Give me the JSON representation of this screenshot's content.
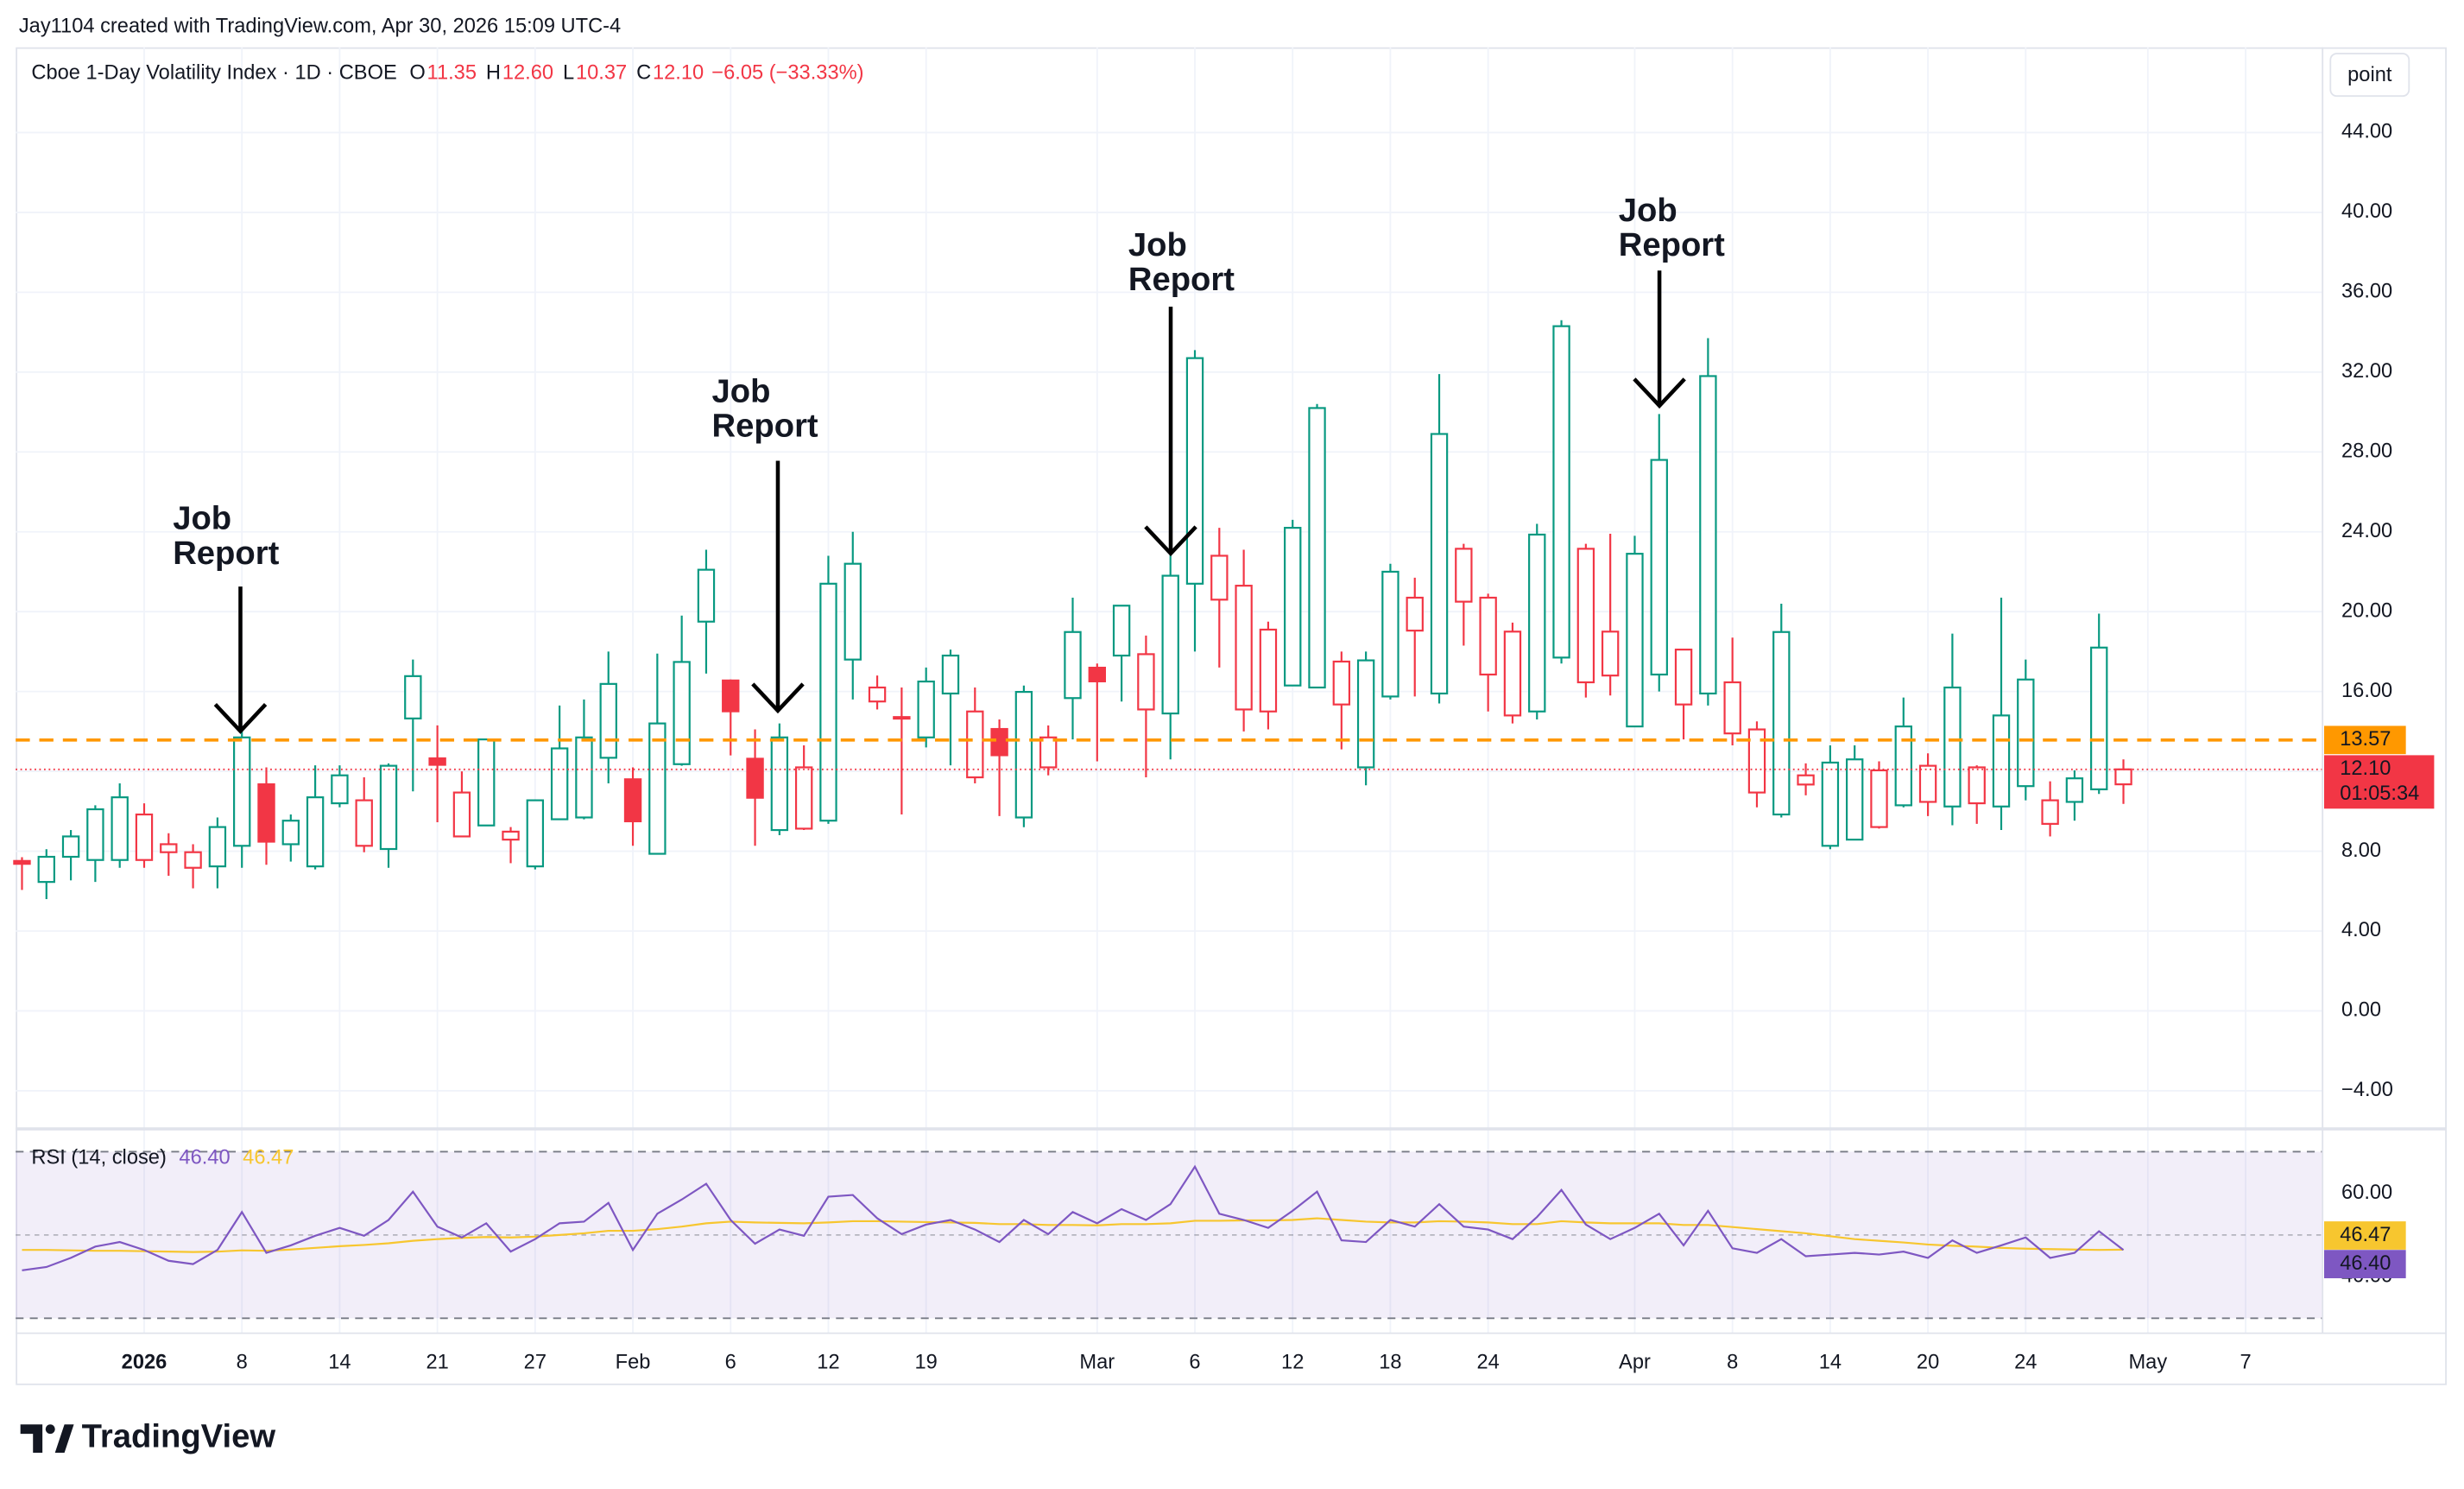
{
  "credit": "Jay1104 created with TradingView.com, Apr 30, 2026 15:09 UTC-4",
  "scale_button": "point",
  "brand": "TradingView",
  "chart_data": [
    {
      "type": "candlestick",
      "legend": {
        "name": "Cboe 1-Day Volatility Index · 1D · CBOE",
        "o": "O",
        "open": "11.35",
        "h": "H",
        "high": "12.60",
        "l": "L",
        "low": "10.37",
        "c": "C",
        "close": "12.10",
        "change": "−6.05 (−33.33%)"
      },
      "open": [
        7.56,
        6.46,
        7.72,
        7.56,
        7.56,
        7.56,
        7.95,
        7.17,
        7.24,
        8.27,
        11.4,
        8.35,
        7.24,
        10.4,
        8.27,
        8.11,
        14.65,
        12.7,
        8.74,
        9.29,
        8.58,
        7.24,
        9.6,
        9.69,
        12.68,
        11.65,
        7.87,
        12.36,
        19.5,
        16.6,
        12.68,
        9.06,
        9.13,
        9.53,
        17.6,
        15.5,
        14.65,
        13.7,
        15.9,
        11.7,
        14.17,
        9.69,
        12.2,
        15.67,
        17.24,
        17.8,
        15.1,
        14.9,
        21.4,
        20.6,
        15.1,
        15.0,
        16.3,
        16.2,
        15.35,
        12.2,
        15.75,
        19.05,
        15.9,
        20.5,
        16.85,
        14.8,
        15.0,
        17.7,
        16.46,
        16.8,
        14.25,
        16.85,
        15.35,
        15.9,
        13.9,
        10.94,
        9.84,
        11.34,
        8.27,
        8.58,
        9.21,
        10.3,
        10.47,
        10.24,
        10.4,
        10.24,
        11.26,
        9.37,
        10.47,
        11.1,
        11.35
      ],
      "high": [
        7.7,
        8.1,
        9.06,
        10.3,
        11.4,
        10.4,
        8.9,
        8.35,
        9.69,
        14.0,
        12.2,
        9.84,
        12.3,
        12.3,
        11.7,
        12.4,
        17.6,
        14.3,
        12.0,
        13.6,
        9.21,
        10.6,
        15.3,
        15.6,
        18.0,
        12.2,
        17.9,
        19.8,
        23.1,
        16.6,
        14.1,
        14.4,
        13.3,
        22.8,
        24.0,
        16.8,
        16.2,
        17.2,
        18.1,
        16.2,
        14.6,
        16.3,
        14.3,
        20.7,
        17.4,
        20.3,
        18.8,
        23.1,
        33.1,
        24.2,
        23.1,
        19.5,
        24.6,
        30.4,
        18.0,
        18.0,
        22.4,
        21.7,
        31.9,
        23.4,
        20.9,
        19.45,
        24.4,
        34.6,
        23.4,
        23.9,
        23.8,
        29.9,
        18.1,
        33.7,
        18.7,
        14.5,
        20.4,
        12.4,
        13.3,
        13.3,
        12.5,
        15.7,
        12.9,
        18.9,
        12.3,
        20.7,
        17.6,
        11.5,
        12.05,
        19.9,
        12.6
      ],
      "low": [
        6.06,
        5.6,
        6.54,
        6.46,
        7.17,
        7.17,
        6.77,
        6.14,
        6.14,
        7.17,
        7.32,
        7.48,
        7.09,
        10.2,
        7.95,
        7.17,
        11.0,
        9.45,
        8.74,
        9.29,
        7.4,
        7.09,
        9.6,
        9.6,
        11.4,
        8.27,
        7.87,
        12.28,
        16.9,
        12.8,
        8.27,
        8.8,
        9.06,
        9.37,
        15.6,
        15.1,
        9.84,
        13.2,
        12.3,
        11.4,
        9.76,
        9.2,
        11.8,
        13.6,
        12.5,
        15.5,
        11.7,
        12.6,
        18.0,
        17.2,
        14.0,
        14.1,
        16.3,
        16.2,
        13.1,
        11.3,
        15.6,
        15.75,
        15.4,
        18.3,
        15.0,
        14.4,
        14.6,
        17.4,
        15.7,
        15.8,
        14.25,
        16.0,
        13.6,
        15.3,
        13.3,
        10.2,
        9.69,
        10.8,
        8.1,
        8.58,
        9.13,
        10.2,
        9.76,
        9.3,
        9.37,
        9.06,
        10.55,
        8.74,
        9.53,
        10.87,
        10.37
      ],
      "close": [
        7.32,
        7.72,
        8.74,
        10.1,
        10.7,
        9.84,
        8.35,
        7.95,
        9.21,
        13.7,
        8.43,
        9.53,
        10.7,
        11.8,
        10.55,
        12.28,
        16.77,
        12.28,
        10.94,
        13.6,
        8.98,
        10.55,
        13.15,
        13.7,
        16.38,
        9.45,
        14.4,
        17.48,
        22.1,
        14.96,
        10.63,
        13.7,
        12.2,
        21.4,
        22.4,
        16.2,
        14.72,
        16.5,
        17.8,
        15.0,
        12.76,
        15.98,
        13.7,
        18.98,
        16.46,
        20.3,
        17.87,
        21.8,
        32.7,
        22.8,
        21.3,
        19.1,
        24.2,
        30.2,
        17.5,
        17.56,
        22.0,
        20.7,
        28.9,
        23.15,
        20.7,
        19.0,
        23.86,
        34.3,
        23.15,
        19.0,
        22.9,
        27.6,
        18.1,
        31.8,
        16.46,
        14.1,
        18.98,
        11.8,
        12.44,
        12.6,
        12.05,
        14.25,
        12.28,
        16.2,
        12.2,
        14.8,
        16.6,
        10.55,
        11.65,
        18.2,
        12.1
      ],
      "up_color": "#089981",
      "down_color": "#f23645",
      "xlim": [
        -0.257,
        94.15
      ],
      "xticks": [
        {
          "value": 5,
          "label": "2026"
        },
        {
          "value": 9,
          "label": "8"
        },
        {
          "value": 13,
          "label": "14"
        },
        {
          "value": 17,
          "label": "21"
        },
        {
          "value": 21,
          "label": "27"
        },
        {
          "value": 25,
          "label": "Feb"
        },
        {
          "value": 29,
          "label": "6"
        },
        {
          "value": 33,
          "label": "12"
        },
        {
          "value": 37,
          "label": "19"
        },
        {
          "value": 44,
          "label": "Mar"
        },
        {
          "value": 48,
          "label": "6"
        },
        {
          "value": 52,
          "label": "12"
        },
        {
          "value": 56,
          "label": "18"
        },
        {
          "value": 60,
          "label": "24"
        },
        {
          "value": 66,
          "label": "Apr"
        },
        {
          "value": 70,
          "label": "8"
        },
        {
          "value": 74,
          "label": "14"
        },
        {
          "value": 78,
          "label": "20"
        },
        {
          "value": 82,
          "label": "24"
        },
        {
          "value": 87,
          "label": "May"
        },
        {
          "value": 91,
          "label": "7"
        }
      ],
      "ylim": [
        -5.83,
        48.27
      ],
      "yticks": [
        {
          "value": 44,
          "label": "44.00"
        },
        {
          "value": 40,
          "label": "40.00"
        },
        {
          "value": 36,
          "label": "36.00"
        },
        {
          "value": 32,
          "label": "32.00"
        },
        {
          "value": 28,
          "label": "28.00"
        },
        {
          "value": 24,
          "label": "24.00"
        },
        {
          "value": 20,
          "label": "20.00"
        },
        {
          "value": 16,
          "label": "16.00"
        },
        {
          "value": 12,
          "label": "12.00"
        },
        {
          "value": 8,
          "label": "8.00"
        },
        {
          "value": 4,
          "label": "4.00"
        },
        {
          "value": 0,
          "label": "0.00"
        },
        {
          "value": -4,
          "label": "−4.00"
        }
      ],
      "grid": true,
      "hline": {
        "value": 13.57,
        "color": "#ff9800"
      },
      "last_price": {
        "value": 12.1,
        "label": "12.10",
        "countdown": "01:05:34",
        "color": "#f23645"
      },
      "annotations": [
        [
          "Job",
          "Report"
        ],
        [
          "Job",
          "Report"
        ],
        [
          "Job",
          "Report"
        ],
        [
          "Job",
          "Report"
        ]
      ]
    },
    {
      "type": "line",
      "title": "RSI (14, close)",
      "ylim": [
        26.4,
        75.1
      ],
      "yticks": [
        {
          "value": 60,
          "label": "60.00"
        },
        {
          "value": 40,
          "label": "40.00"
        }
      ],
      "bands": [
        70,
        50,
        30
      ],
      "band_color": "#7e57c2",
      "series": [
        {
          "color": "#7e57c2",
          "last_label": "46.40",
          "values": [
            41.5,
            42.3,
            44.5,
            47.2,
            48.3,
            46.4,
            43.8,
            43.0,
            46.4,
            55.5,
            45.7,
            47.5,
            49.8,
            51.7,
            49.8,
            53.6,
            60.4,
            52.0,
            49.4,
            52.8,
            46.0,
            49.0,
            52.8,
            53.2,
            57.7,
            46.4,
            55.1,
            58.5,
            62.3,
            53.6,
            47.9,
            51.3,
            49.8,
            59.2,
            59.6,
            54.0,
            50.2,
            52.5,
            53.6,
            51.3,
            48.3,
            53.6,
            50.2,
            55.5,
            52.8,
            56.2,
            53.6,
            57.4,
            66.4,
            55.1,
            53.6,
            51.7,
            55.8,
            60.4,
            48.7,
            48.3,
            53.6,
            52.0,
            57.4,
            52.0,
            51.3,
            49.0,
            54.3,
            60.8,
            52.5,
            49.0,
            51.7,
            55.1,
            47.5,
            55.8,
            46.8,
            45.7,
            49.0,
            44.9,
            45.3,
            45.7,
            45.3,
            46.0,
            44.5,
            48.7,
            45.7,
            47.5,
            49.4,
            44.5,
            45.7,
            50.9,
            46.4
          ]
        },
        {
          "color": "#f7c62f",
          "last_label": "46.47",
          "values": [
            46.4,
            46.4,
            46.3,
            46.2,
            46.2,
            46.1,
            46.0,
            45.9,
            46.0,
            46.3,
            46.2,
            46.5,
            46.9,
            47.3,
            47.6,
            48.0,
            48.6,
            49.0,
            49.3,
            49.5,
            49.4,
            49.6,
            50.0,
            50.4,
            51.0,
            51.0,
            51.4,
            52.0,
            52.8,
            53.2,
            53.0,
            52.9,
            52.8,
            53.0,
            53.3,
            53.3,
            53.2,
            53.1,
            53.0,
            52.9,
            52.6,
            52.6,
            52.4,
            52.4,
            52.3,
            52.6,
            52.6,
            52.8,
            53.4,
            53.4,
            53.5,
            53.5,
            53.6,
            54.0,
            53.6,
            53.2,
            53.0,
            53.0,
            53.3,
            53.2,
            53.0,
            52.6,
            52.6,
            53.3,
            53.0,
            52.8,
            52.8,
            52.8,
            52.4,
            52.4,
            51.9,
            51.4,
            50.9,
            50.4,
            49.7,
            49.0,
            48.6,
            48.2,
            47.7,
            47.4,
            47.2,
            46.9,
            46.7,
            46.6,
            46.5,
            46.4,
            46.47
          ]
        }
      ]
    }
  ]
}
